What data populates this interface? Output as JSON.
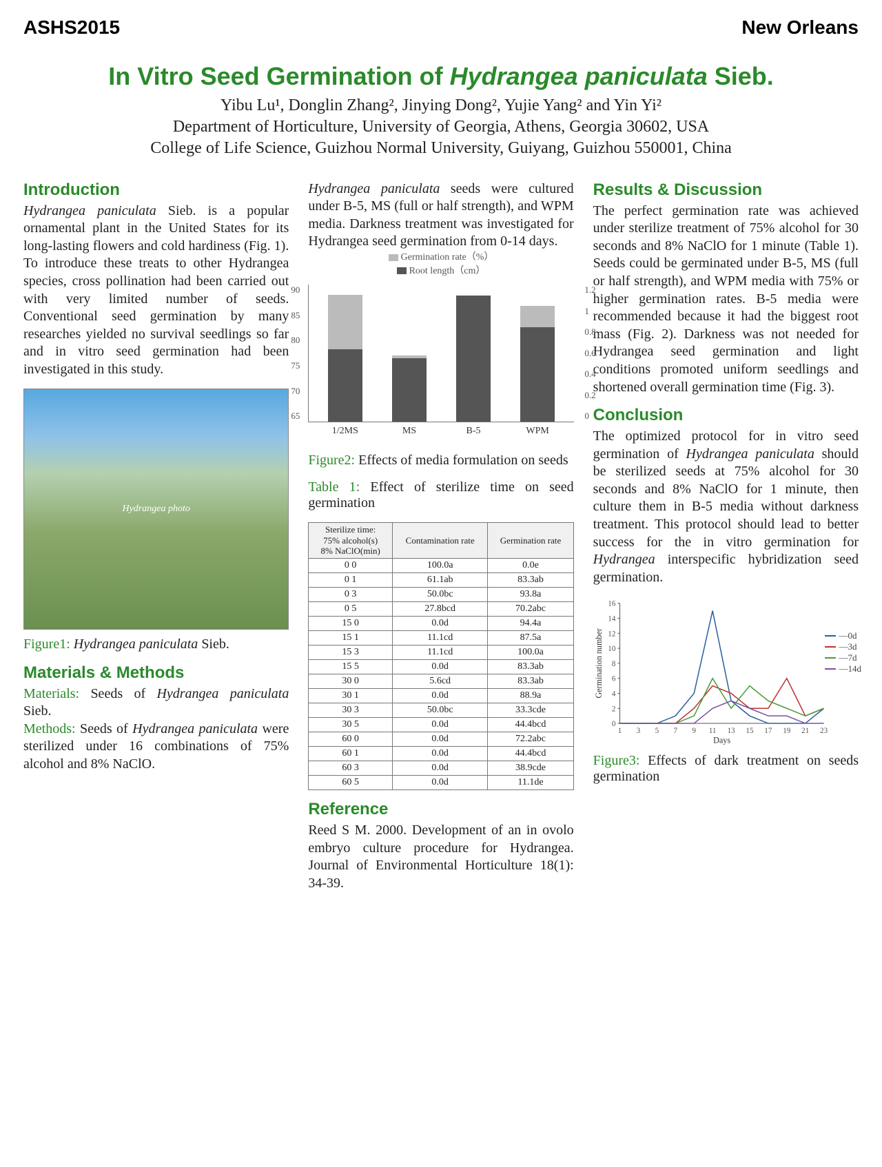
{
  "header": {
    "left": "ASHS2015",
    "right": "New Orleans"
  },
  "title_a": "In Vitro Seed Germination of ",
  "title_b": "Hydrangea paniculata",
  "title_c": " Sieb.",
  "authors": "Yibu Lu¹, Donglin Zhang², Jinying Dong², Yujie Yang² and Yin Yi²",
  "affil1": "Department of Horticulture, University of Georgia, Athens, Georgia 30602, USA",
  "affil2": "College of Life Science, Guizhou Normal University, Guiyang, Guizhou 550001, China",
  "sections": {
    "intro_h": "Introduction",
    "intro_a": "Hydrangea paniculata",
    "intro_b": " Sieb. is a popular ornamental plant in the United States for its long-lasting flowers and cold hardiness (Fig. 1). To introduce these treats to other Hydrangea species, cross pollination had been carried out with very limited number of seeds. Conventional seed germination by many researches yielded no survival seedlings so far and in vitro seed germination had been investigated in this study.",
    "fig1_label": "Figure1:",
    "fig1_a": " Hydrangea paniculata",
    "fig1_b": " Sieb.",
    "mm_h": "Materials & Methods",
    "mm_mat_lbl": "Materials:",
    "mm_mat_a": " Seeds of ",
    "mm_mat_b": "Hydrangea paniculata",
    "mm_mat_c": " Sieb.",
    "mm_met_lbl": "Methods:",
    "mm_met_a": " Seeds of ",
    "mm_met_b": "Hydrangea paniculata",
    "mm_met_c": " were sterilized under 16 combinations of 75% alcohol and 8% NaClO.",
    "col2_top_a": "Hydrangea paniculata",
    "col2_top_b": " seeds were cultured under B-5, MS (full or half strength), and WPM media. Darkness treatment was investigated for Hydrangea seed germination from 0-14 days.",
    "legend_germ": "Germination rate（%）",
    "legend_root": "Root length（cm）",
    "fig2_label": "Figure2:",
    "fig2_txt": " Effects of media formulation on seeds",
    "tbl_label": "Table 1:",
    "tbl_txt": " Effect of sterilize time on seed germination",
    "tbl_h1a": "Sterilize time:",
    "tbl_h1b": "75% alcohol(s)",
    "tbl_h1c": "8% NaClO(min)",
    "tbl_h2": "Contamination rate",
    "tbl_h3": "Germination rate",
    "ref_h": "Reference",
    "ref_txt": "Reed S M. 2000. Development of an in ovolo embryo culture procedure for Hydrangea. Journal of Environmental Horticulture 18(1): 34-39.",
    "res_h": "Results & Discussion",
    "res_txt": "The perfect germination rate was achieved under sterilize treatment of 75% alcohol for 30 seconds and 8% NaClO for 1 minute (Table 1). Seeds could be germinated under B-5, MS (full or half strength), and WPM media with 75% or higher germination rates. B-5 media were recommended because it had the biggest root mass (Fig. 2). Darkness was not needed for Hydrangea seed germination and light conditions promoted uniform seedlings and shortened overall germination time (Fig. 3).",
    "con_h": "Conclusion",
    "con_a": "The optimized protocol for in vitro seed germination of ",
    "con_b": "Hydrangea paniculata",
    "con_c": " should be sterilized seeds at 75% alcohol for 30 seconds and 8% NaClO for 1 minute, then culture them in B-5 media without darkness treatment. This protocol should lead to better success for the in vitro germination for ",
    "con_d": "Hydrangea",
    "con_e": " interspecific hybridization seed germination.",
    "fig3_label": "Figure3:",
    "fig3_txt": " Effects of dark treatment on seeds germination",
    "fig3_ylabel": "Germination number",
    "fig3_xlabel": "Days"
  },
  "barchart": {
    "y_left": [
      "90",
      "85",
      "80",
      "75",
      "70",
      "65"
    ],
    "y_right": [
      "1.2",
      "1",
      "0.8",
      "0.6",
      "0.4",
      "0.2",
      "0"
    ],
    "y_left_min": 65,
    "y_left_max": 90,
    "y_right_min": 0,
    "y_right_max": 1.2,
    "colors": {
      "germ": "#bbbbbb",
      "root": "#555555",
      "axis": "#777"
    },
    "series": [
      {
        "label": "1/2MS",
        "germ": 88,
        "root": 0.63
      },
      {
        "label": "MS",
        "germ": 77,
        "root": 0.55
      },
      {
        "label": "B-5",
        "germ": 87,
        "root": 1.1
      },
      {
        "label": "WPM",
        "germ": 86,
        "root": 0.82
      }
    ]
  },
  "table_rows": [
    [
      "0 0",
      "100.0a",
      "0.0e"
    ],
    [
      "0 1",
      "61.1ab",
      "83.3ab"
    ],
    [
      "0 3",
      "50.0bc",
      "93.8a"
    ],
    [
      "0 5",
      "27.8bcd",
      "70.2abc"
    ],
    [
      "15 0",
      "0.0d",
      "94.4a"
    ],
    [
      "15 1",
      "11.1cd",
      "87.5a"
    ],
    [
      "15 3",
      "11.1cd",
      "100.0a"
    ],
    [
      "15 5",
      "0.0d",
      "83.3ab"
    ],
    [
      "30 0",
      "5.6cd",
      "83.3ab"
    ],
    [
      "30 1",
      "0.0d",
      "88.9a"
    ],
    [
      "30 3",
      "50.0bc",
      "33.3cde"
    ],
    [
      "30 5",
      "0.0d",
      "44.4bcd"
    ],
    [
      "60 0",
      "0.0d",
      "72.2abc"
    ],
    [
      "60 1",
      "0.0d",
      "44.4bcd"
    ],
    [
      "60 3",
      "0.0d",
      "38.9cde"
    ],
    [
      "60 5",
      "0.0d",
      "11.1de"
    ]
  ],
  "linechart": {
    "x": [
      1,
      3,
      5,
      7,
      9,
      11,
      13,
      15,
      17,
      19,
      21,
      23
    ],
    "y_ticks": [
      0,
      2,
      4,
      6,
      8,
      10,
      12,
      14,
      16
    ],
    "colors": {
      "0d": "#2b5fa0",
      "3d": "#c03030",
      "7d": "#4a9a3a",
      "14d": "#7a50a0",
      "axis": "#555"
    },
    "series": {
      "0d": [
        0,
        0,
        0,
        1,
        4,
        15,
        3,
        1,
        0,
        0,
        0,
        2
      ],
      "3d": [
        0,
        0,
        0,
        0,
        2,
        5,
        4,
        2,
        2,
        6,
        1,
        2
      ],
      "7d": [
        0,
        0,
        0,
        0,
        1,
        6,
        2,
        5,
        3,
        2,
        1,
        2
      ],
      "14d": [
        0,
        0,
        0,
        0,
        0,
        2,
        3,
        2,
        1,
        1,
        0,
        0
      ]
    },
    "legend": [
      "0d",
      "3d",
      "7d",
      "14d"
    ]
  }
}
